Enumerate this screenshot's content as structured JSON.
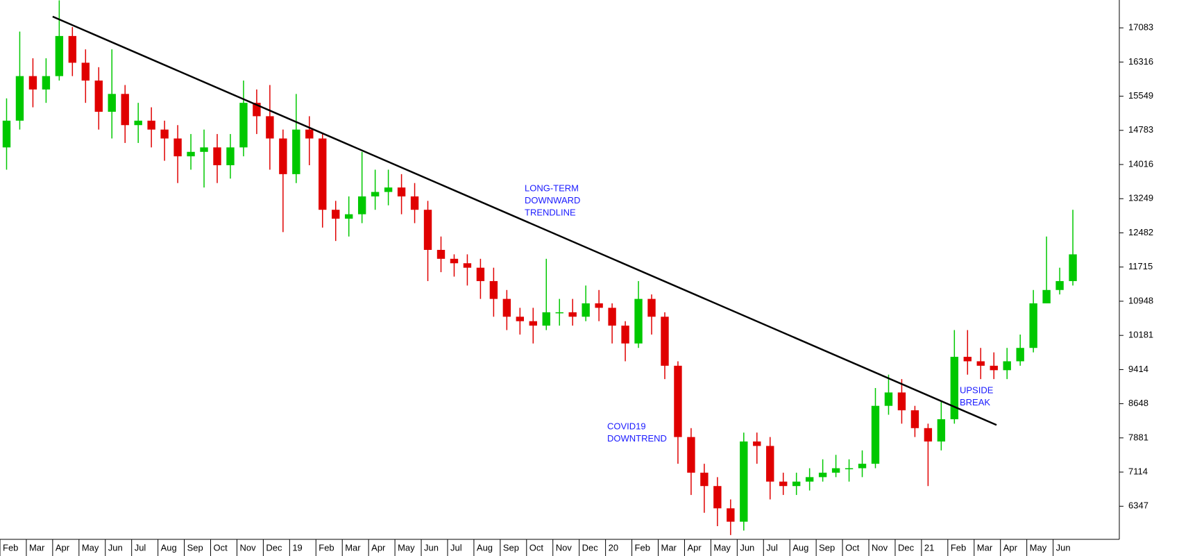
{
  "chart_data": {
    "type": "candlestick",
    "categories": [
      "Feb",
      null,
      "Mar",
      null,
      "Apr",
      null,
      "May",
      null,
      "Jun",
      null,
      "Jul",
      null,
      "Aug",
      null,
      "Sep",
      null,
      "Oct",
      null,
      "Nov",
      null,
      "Dec",
      null,
      "19",
      null,
      "Feb",
      null,
      "Mar",
      null,
      "Apr",
      null,
      "May",
      null,
      "Jun",
      null,
      "Jul",
      null,
      "Aug",
      null,
      "Sep",
      null,
      "Oct",
      null,
      "Nov",
      null,
      "Dec",
      null,
      "20",
      null,
      "Feb",
      null,
      "Mar",
      null,
      "Apr",
      null,
      "May",
      null,
      "Jun",
      null,
      "Jul",
      null,
      "Aug",
      null,
      "Sep",
      null,
      "Oct",
      null,
      "Nov",
      null,
      "Dec",
      null,
      "21",
      null,
      "Feb",
      null,
      "Mar",
      null,
      "Apr",
      null,
      "May",
      null,
      "Jun",
      null
    ],
    "open": [
      14400,
      15000,
      16000,
      15700,
      16000,
      16900,
      16300,
      15900,
      15200,
      15600,
      14900,
      15000,
      14800,
      14600,
      14200,
      14300,
      14400,
      14000,
      14400,
      15400,
      15100,
      14600,
      13800,
      14800,
      14600,
      13000,
      12800,
      12900,
      13300,
      13400,
      13500,
      13300,
      13000,
      12100,
      11900,
      11800,
      11700,
      11400,
      11000,
      10600,
      10500,
      10400,
      10700,
      10700,
      10600,
      10900,
      10800,
      10400,
      10000,
      11000,
      10600,
      9500,
      7900,
      7100,
      6800,
      6300,
      6000,
      7800,
      7700,
      6900,
      6800,
      6900,
      7000,
      7100,
      7200,
      7200,
      7300,
      8600,
      8900,
      8500,
      8100,
      7800,
      8300,
      9700,
      9600,
      9500,
      9400,
      9600,
      9900,
      10900,
      11200,
      11400
    ],
    "high": [
      15500,
      17000,
      16400,
      16400,
      17700,
      17100,
      16600,
      16200,
      16600,
      15800,
      15400,
      15300,
      15000,
      14900,
      14700,
      14800,
      14700,
      14700,
      15900,
      15700,
      15800,
      14800,
      15600,
      15100,
      14700,
      13200,
      13300,
      14300,
      13900,
      13900,
      13800,
      13600,
      13200,
      12400,
      12000,
      12000,
      11900,
      11700,
      11200,
      10800,
      10800,
      11900,
      11000,
      11000,
      11300,
      11200,
      10900,
      10500,
      11400,
      11100,
      10700,
      9600,
      8100,
      7300,
      7000,
      6500,
      8000,
      8000,
      7900,
      7100,
      7100,
      7200,
      7400,
      7500,
      7400,
      7600,
      9000,
      9300,
      9200,
      8600,
      8200,
      8700,
      10300,
      10300,
      9900,
      9800,
      9900,
      10200,
      11200,
      12400,
      11700,
      13000
    ],
    "low": [
      13900,
      14800,
      15300,
      15400,
      15900,
      16000,
      15400,
      14800,
      14600,
      14500,
      14500,
      14400,
      14100,
      13600,
      13900,
      13500,
      13600,
      13700,
      14200,
      14700,
      13900,
      12500,
      13600,
      14000,
      12600,
      12300,
      12400,
      12700,
      13000,
      13100,
      12900,
      12700,
      11400,
      11600,
      11500,
      11300,
      11000,
      10600,
      10300,
      10200,
      10000,
      10300,
      10400,
      10400,
      10500,
      10500,
      10000,
      9600,
      9900,
      10200,
      9200,
      7300,
      6600,
      6200,
      5900,
      5700,
      5800,
      7300,
      6500,
      6600,
      6600,
      6700,
      6900,
      7000,
      6900,
      7000,
      7200,
      8400,
      8200,
      7900,
      6800,
      7600,
      8200,
      9300,
      9200,
      9200,
      9200,
      9500,
      9800,
      10900,
      11100,
      11300
    ],
    "close": [
      15000,
      16000,
      15700,
      16000,
      16900,
      16300,
      15900,
      15200,
      15600,
      14900,
      15000,
      14800,
      14600,
      14200,
      14300,
      14400,
      14000,
      14400,
      15400,
      15100,
      14600,
      13800,
      14800,
      14600,
      13000,
      12800,
      12900,
      13300,
      13400,
      13500,
      13300,
      13000,
      12100,
      11900,
      11800,
      11700,
      11400,
      11000,
      10600,
      10500,
      10400,
      10700,
      10700,
      10600,
      10900,
      10800,
      10400,
      10000,
      11000,
      10600,
      9500,
      7900,
      7100,
      6800,
      6300,
      6000,
      7800,
      7700,
      6900,
      6800,
      6900,
      7000,
      7100,
      7200,
      7200,
      7300,
      8600,
      8900,
      8500,
      8100,
      7800,
      8300,
      9700,
      9600,
      9500,
      9400,
      9600,
      9900,
      10900,
      11200,
      11400,
      12000
    ],
    "up_color": "#00c800",
    "down_color": "#e00000",
    "ylim": [
      5604,
      17708
    ],
    "yticks": [
      6347,
      7114,
      7881,
      8648,
      9414,
      10181,
      10948,
      11715,
      12482,
      13249,
      14016,
      14783,
      15549,
      16316,
      17083
    ],
    "trendline": {
      "x": [
        4,
        75
      ],
      "y": [
        17336,
        8170
      ],
      "color": "#000000"
    },
    "annotations": [
      {
        "lines": [
          "LONG-TERM",
          "DOWNWARD",
          "TRENDLINE"
        ]
      },
      {
        "lines": [
          "COVID19",
          "DOWNTREND"
        ]
      },
      {
        "lines": [
          "UPSIDE",
          "BREAK"
        ]
      }
    ]
  }
}
